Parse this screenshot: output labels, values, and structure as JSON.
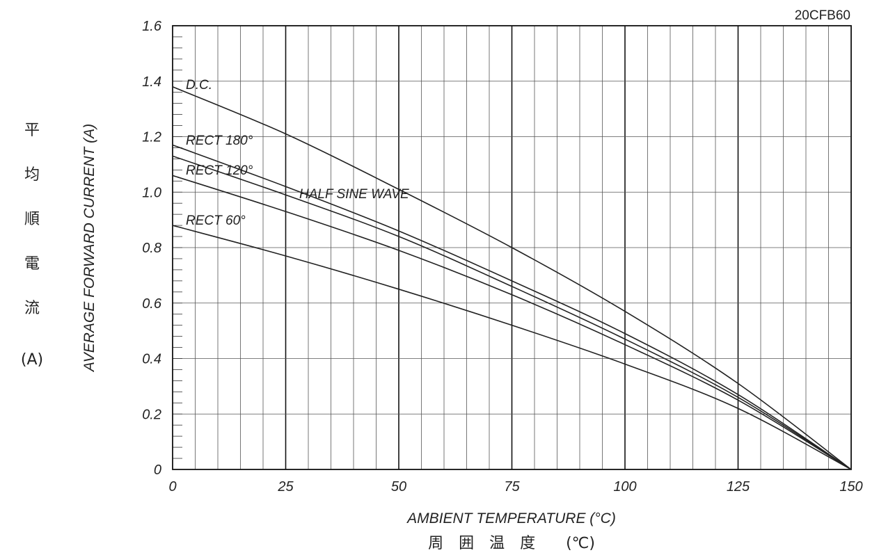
{
  "chart_data": {
    "type": "line",
    "model": "20CFB60",
    "xlabel": "AMBIENT TEMPERATURE (°C)",
    "xlabel_jp": "周　囲　温　度　　(℃)",
    "ylabel": "AVERAGE FORWARD CURRENT (A)",
    "ylabel_jp": [
      "平",
      "均",
      "順",
      "電",
      "流",
      "(A)"
    ],
    "xlim": [
      0,
      150
    ],
    "ylim": [
      0,
      1.6
    ],
    "x_ticks": [
      "0",
      "25",
      "50",
      "75",
      "100",
      "125",
      "150"
    ],
    "y_ticks": [
      "0",
      "0.2",
      "0.4",
      "0.6",
      "0.8",
      "1.0",
      "1.2",
      "1.4",
      "1.6"
    ],
    "grid": true,
    "series": [
      {
        "name": "D.C.",
        "x": [
          0,
          25,
          50,
          75,
          100,
          125,
          150
        ],
        "y": [
          1.38,
          1.21,
          1.01,
          0.8,
          0.57,
          0.31,
          0
        ]
      },
      {
        "name": "RECT 180°",
        "x": [
          0,
          25,
          50,
          75,
          100,
          125,
          150
        ],
        "y": [
          1.17,
          1.02,
          0.86,
          0.68,
          0.49,
          0.27,
          0
        ]
      },
      {
        "name": "HALF SINE WAVE",
        "x": [
          0,
          25,
          50,
          75,
          100,
          125,
          150
        ],
        "y": [
          1.13,
          0.99,
          0.84,
          0.66,
          0.47,
          0.26,
          0
        ]
      },
      {
        "name": "RECT 120°",
        "x": [
          0,
          25,
          50,
          75,
          100,
          125,
          150
        ],
        "y": [
          1.06,
          0.93,
          0.79,
          0.63,
          0.45,
          0.25,
          0
        ]
      },
      {
        "name": "RECT 60°",
        "x": [
          0,
          25,
          50,
          75,
          100,
          125,
          150
        ],
        "y": [
          0.88,
          0.77,
          0.65,
          0.52,
          0.38,
          0.22,
          0
        ]
      }
    ]
  }
}
